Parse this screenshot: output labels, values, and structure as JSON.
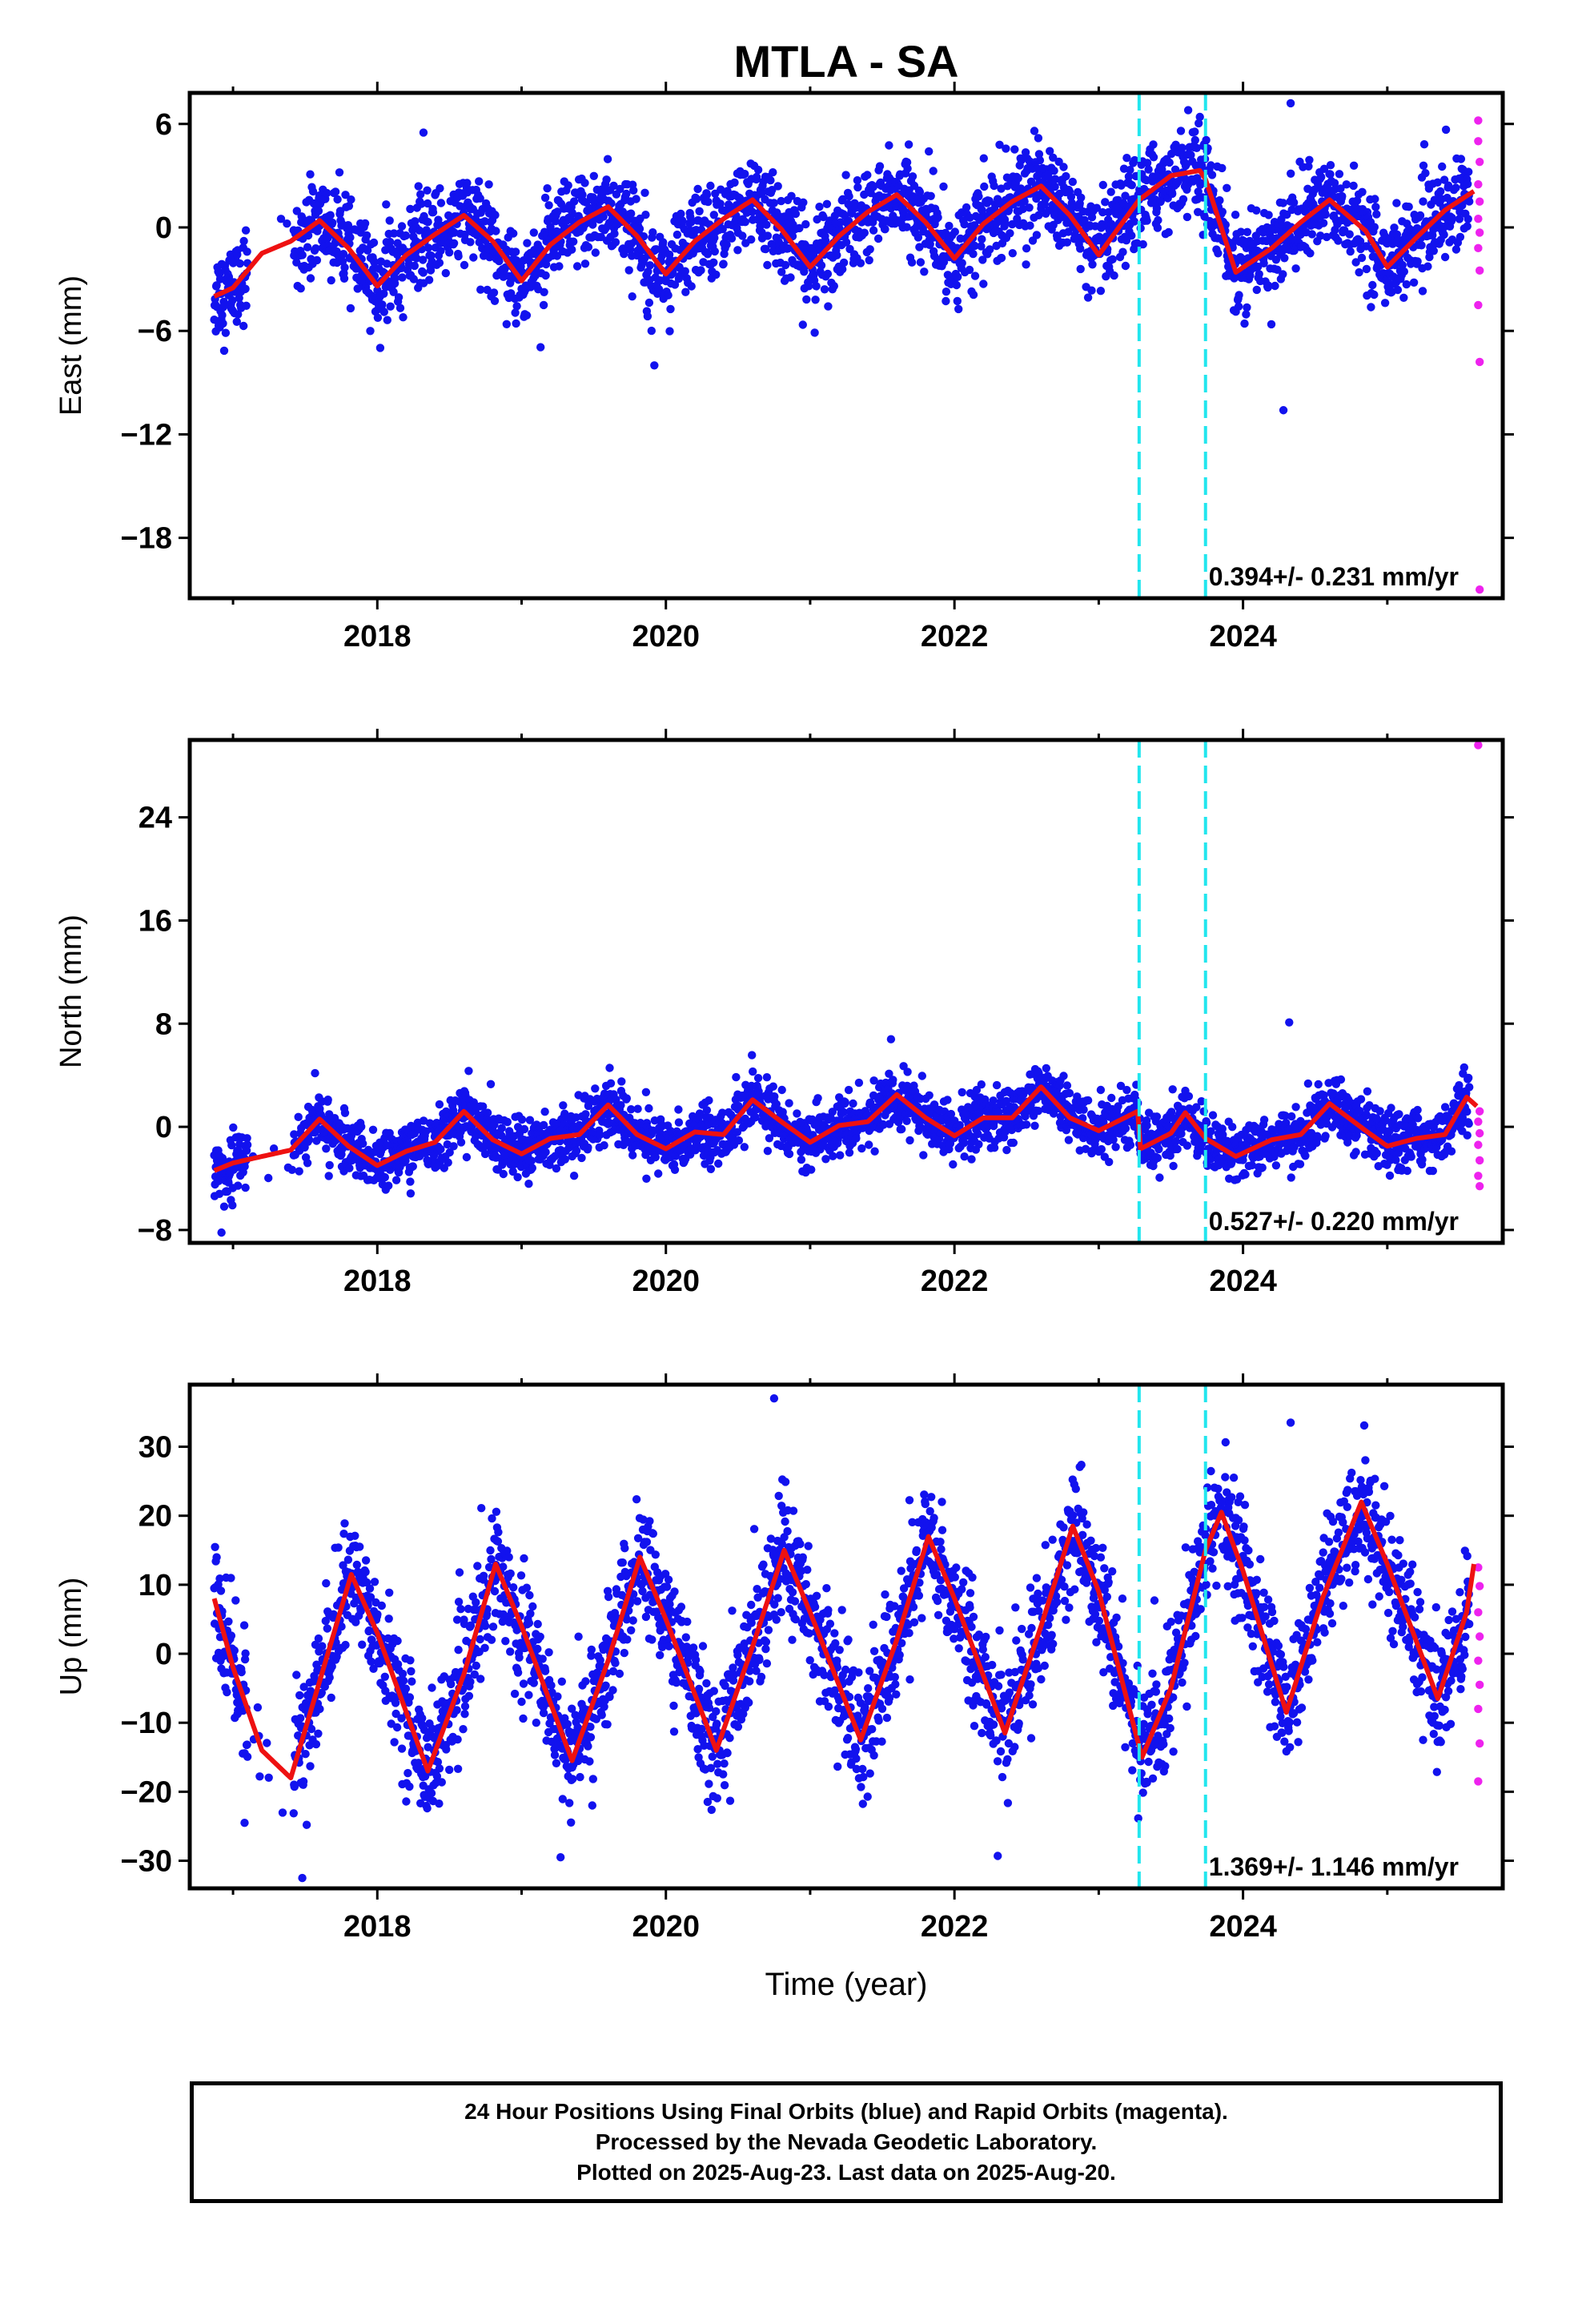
{
  "title": "MTLA - SA",
  "colors": {
    "final_orbits": "#1212ee",
    "rapid_orbits": "#ee22ee",
    "model_fit": "#ee1111",
    "offsets": "#22e6ee",
    "frame": "#000000"
  },
  "xaxis": {
    "label": "Time (year)",
    "lim": [
      2016.7,
      2025.8
    ],
    "ticks": [
      2018,
      2020,
      2022,
      2024
    ]
  },
  "chart_data": [
    {
      "type": "scatter",
      "name_component": "east",
      "ylabel": "East (mm)",
      "ylim": [
        -21.5,
        7.8
      ],
      "yticks": [
        6,
        0,
        -6,
        -12,
        -18
      ],
      "velocity_label": "0.394+/- 0.231 mm/yr",
      "offset_epochs": [
        2023.28,
        2023.74
      ],
      "final_end": 2025.57,
      "fit_curve": {
        "x": [
          2016.87,
          2017.0,
          2017.2,
          2017.4,
          2017.6,
          2017.8,
          2018.0,
          2018.2,
          2018.4,
          2018.6,
          2018.8,
          2019.0,
          2019.2,
          2019.4,
          2019.6,
          2019.8,
          2020.0,
          2020.2,
          2020.4,
          2020.6,
          2020.8,
          2021.0,
          2021.2,
          2021.4,
          2021.6,
          2021.8,
          2022.0,
          2022.2,
          2022.4,
          2022.6,
          2022.8,
          2023.0,
          2023.28,
          2023.5,
          2023.7,
          2023.74,
          2023.95,
          2024.2,
          2024.4,
          2024.6,
          2024.85,
          2025.0,
          2025.2,
          2025.4,
          2025.6
        ],
        "y": [
          -4.0,
          -3.5,
          -1.5,
          -0.8,
          0.4,
          -1.2,
          -3.4,
          -1.6,
          -0.4,
          0.7,
          -0.8,
          -3.1,
          -1.0,
          0.3,
          1.2,
          -0.5,
          -2.7,
          -0.8,
          0.5,
          1.6,
          -0.1,
          -2.3,
          -0.5,
          0.9,
          1.9,
          0.3,
          -1.8,
          0.2,
          1.5,
          2.4,
          0.7,
          -1.6,
          1.6,
          3.0,
          3.3,
          2.8,
          -2.6,
          -1.2,
          0.3,
          1.6,
          -0.2,
          -2.3,
          -0.6,
          1.0,
          2.1
        ]
      },
      "scatter_band": {
        "sigma": 1.3,
        "outliers": [
          {
            "x": 2019.92,
            "y": -8.0
          },
          {
            "x": 2024.28,
            "y": -10.6
          },
          {
            "x": 2024.33,
            "y": 7.2
          },
          {
            "x": 2023.62,
            "y": 6.8
          },
          {
            "x": 2018.32,
            "y": 5.5
          }
        ]
      },
      "rapid_points": [
        {
          "x": 2025.63,
          "y": 6.2
        },
        {
          "x": 2025.63,
          "y": 5.0
        },
        {
          "x": 2025.64,
          "y": 3.8
        },
        {
          "x": 2025.63,
          "y": 2.5
        },
        {
          "x": 2025.64,
          "y": 1.5
        },
        {
          "x": 2025.63,
          "y": 0.5
        },
        {
          "x": 2025.64,
          "y": -0.3
        },
        {
          "x": 2025.63,
          "y": -1.2
        },
        {
          "x": 2025.64,
          "y": -2.5
        },
        {
          "x": 2025.63,
          "y": -4.5
        },
        {
          "x": 2025.64,
          "y": -7.8
        },
        {
          "x": 2025.64,
          "y": -21.0
        }
      ]
    },
    {
      "type": "scatter",
      "name_component": "north",
      "ylabel": "North (mm)",
      "ylim": [
        -9,
        30
      ],
      "yticks": [
        24,
        16,
        8,
        0,
        -8
      ],
      "velocity_label": "0.527+/- 0.220 mm/yr",
      "offset_epochs": [
        2023.28,
        2023.74
      ],
      "final_end": 2025.57,
      "fit_curve": {
        "x": [
          2016.87,
          2017.0,
          2017.2,
          2017.4,
          2017.6,
          2017.8,
          2018.0,
          2018.2,
          2018.4,
          2018.6,
          2018.8,
          2019.0,
          2019.2,
          2019.4,
          2019.6,
          2019.8,
          2020.0,
          2020.2,
          2020.4,
          2020.6,
          2020.8,
          2021.0,
          2021.2,
          2021.4,
          2021.6,
          2021.8,
          2022.0,
          2022.2,
          2022.4,
          2022.6,
          2022.8,
          2023.0,
          2023.27,
          2023.29,
          2023.5,
          2023.6,
          2023.74,
          2023.95,
          2024.2,
          2024.4,
          2024.6,
          2024.85,
          2025.0,
          2025.2,
          2025.4,
          2025.55,
          2025.62
        ],
        "y": [
          -3.4,
          -2.8,
          -2.3,
          -1.8,
          0.6,
          -1.5,
          -3.0,
          -1.9,
          -1.2,
          1.2,
          -1.0,
          -2.1,
          -0.9,
          -0.6,
          1.7,
          -0.6,
          -1.7,
          -0.4,
          -0.6,
          2.1,
          0.4,
          -1.2,
          0.1,
          0.4,
          2.5,
          0.7,
          -0.7,
          0.7,
          0.7,
          3.1,
          0.7,
          -0.3,
          1.2,
          -1.7,
          -0.5,
          1.1,
          -0.9,
          -2.3,
          -1.0,
          -0.6,
          1.8,
          -0.3,
          -1.5,
          -0.9,
          -0.6,
          2.3,
          1.6
        ]
      },
      "scatter_band": {
        "sigma": 1.1,
        "outliers": [
          {
            "x": 2024.32,
            "y": 8.1
          },
          {
            "x": 2016.92,
            "y": -8.2
          }
        ]
      },
      "rapid_points": [
        {
          "x": 2025.63,
          "y": 29.6
        },
        {
          "x": 2025.64,
          "y": 1.2
        },
        {
          "x": 2025.63,
          "y": 0.4
        },
        {
          "x": 2025.64,
          "y": -0.5
        },
        {
          "x": 2025.63,
          "y": -1.4
        },
        {
          "x": 2025.64,
          "y": -2.6
        },
        {
          "x": 2025.63,
          "y": -3.8
        },
        {
          "x": 2025.64,
          "y": -4.6
        }
      ]
    },
    {
      "type": "scatter",
      "name_component": "up",
      "ylabel": "Up (mm)",
      "ylim": [
        -34,
        39
      ],
      "yticks": [
        30,
        20,
        10,
        0,
        -10,
        -20,
        -30
      ],
      "velocity_label": "1.369+/- 1.146 mm/yr",
      "offset_epochs": [
        2023.28,
        2023.74
      ],
      "final_end": 2025.57,
      "fit_curve": {
        "x": [
          2016.87,
          2017.0,
          2017.2,
          2017.4,
          2017.6,
          2017.82,
          2018.0,
          2018.35,
          2018.6,
          2018.82,
          2019.0,
          2019.35,
          2019.6,
          2019.82,
          2020.0,
          2020.35,
          2020.6,
          2020.82,
          2021.0,
          2021.35,
          2021.6,
          2021.82,
          2022.0,
          2022.35,
          2022.6,
          2022.82,
          2023.0,
          2023.3,
          2023.5,
          2023.74,
          2023.85,
          2024.0,
          2024.3,
          2024.55,
          2024.82,
          2025.0,
          2025.35,
          2025.55,
          2025.6
        ],
        "y": [
          8.0,
          -2.0,
          -14.0,
          -18.0,
          -4.0,
          11.5,
          3.0,
          -17.0,
          -3.0,
          13.0,
          4.0,
          -15.5,
          -1.0,
          14.0,
          5.0,
          -14.0,
          1.0,
          15.0,
          6.0,
          -12.5,
          2.0,
          17.0,
          8.0,
          -11.5,
          4.0,
          18.5,
          9.0,
          -15.0,
          -5.0,
          15.0,
          20.5,
          12.0,
          -8.5,
          8.0,
          22.0,
          13.0,
          -6.5,
          6.0,
          13.0
        ]
      },
      "scatter_band": {
        "sigma": 4.3,
        "outliers": [
          {
            "x": 2020.75,
            "y": 37.0
          },
          {
            "x": 2024.33,
            "y": 33.5
          },
          {
            "x": 2017.48,
            "y": -32.5
          },
          {
            "x": 2019.27,
            "y": -29.5
          },
          {
            "x": 2022.3,
            "y": -29.3
          },
          {
            "x": 2017.08,
            "y": -24.5
          }
        ]
      },
      "rapid_points": [
        {
          "x": 2025.63,
          "y": 12.5
        },
        {
          "x": 2025.64,
          "y": 9.8
        },
        {
          "x": 2025.63,
          "y": 6.0
        },
        {
          "x": 2025.64,
          "y": 2.5
        },
        {
          "x": 2025.63,
          "y": -1.0
        },
        {
          "x": 2025.64,
          "y": -4.5
        },
        {
          "x": 2025.63,
          "y": -8.0
        },
        {
          "x": 2025.64,
          "y": -13.0
        },
        {
          "x": 2025.63,
          "y": -18.5
        }
      ]
    }
  ],
  "footer": {
    "line1": "24 Hour Positions Using Final Orbits (blue) and Rapid Orbits (magenta).",
    "line2": "Processed by the Nevada Geodetic Laboratory.",
    "line3": "Plotted on 2025-Aug-23. Last data on 2025-Aug-20."
  }
}
